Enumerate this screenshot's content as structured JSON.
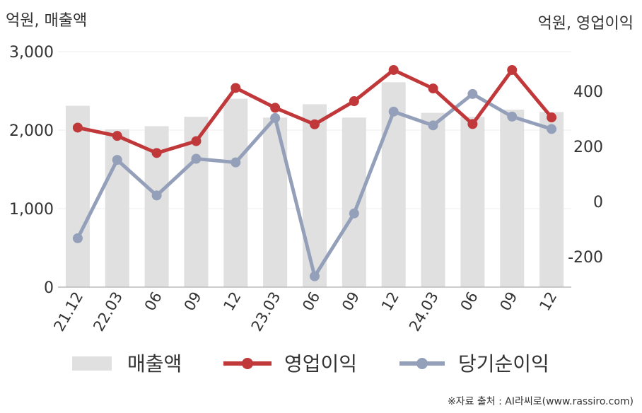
{
  "chart_data": {
    "type": "bar+line",
    "categories": [
      "21.12",
      "22.03",
      "06",
      "09",
      "12",
      "23.03",
      "06",
      "09",
      "12",
      "24.03",
      "06",
      "09",
      "12"
    ],
    "left_axis": {
      "label": "억원, 매출액",
      "ylim": [
        0,
        3000
      ],
      "ticks": [
        "0",
        "1,000",
        "2,000",
        "3,000"
      ],
      "tick_values": [
        0,
        1000,
        2000,
        3000
      ]
    },
    "right_axis": {
      "label": "억원, 영업이익",
      "ylim": [
        -300,
        550
      ],
      "ticks": [
        "-200",
        "0",
        "200",
        "400"
      ],
      "tick_values": [
        -200,
        0,
        200,
        400
      ]
    },
    "series": [
      {
        "name": "매출액",
        "type": "bar",
        "axis": "left",
        "color": "#e0e0e0",
        "values": [
          2310,
          2010,
          2050,
          2170,
          2400,
          2160,
          2330,
          2160,
          2610,
          2220,
          2170,
          2260,
          2230
        ]
      },
      {
        "name": "영업이익",
        "type": "line",
        "axis": "right",
        "color": "#c0383a",
        "values": [
          268,
          238,
          176,
          219,
          412,
          340,
          280,
          364,
          477,
          410,
          281,
          477,
          305
        ]
      },
      {
        "name": "당기순이익",
        "type": "line",
        "axis": "right",
        "color": "#94a0ba",
        "values": [
          -133,
          151,
          22,
          155,
          142,
          303,
          -271,
          -43,
          326,
          276,
          390,
          308,
          263
        ]
      }
    ],
    "grid": true,
    "legend_position": "bottom"
  },
  "footer": {
    "source": "※자료 출처 : AI라씨로(www.rassiro.com)"
  }
}
